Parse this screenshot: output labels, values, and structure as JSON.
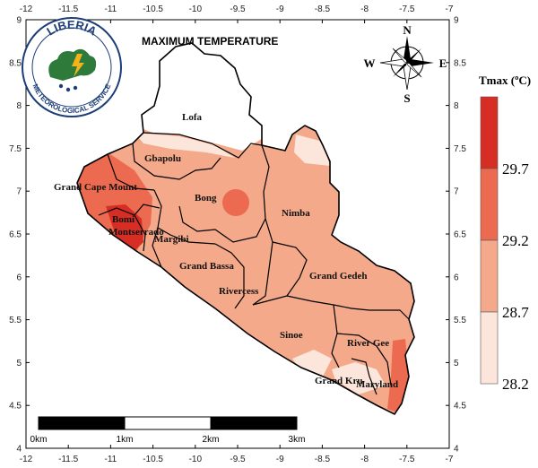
{
  "map": {
    "title": "MAXIMUM TEMPERATURE",
    "x_ticks": [
      "-12",
      "-11.5",
      "-11",
      "-10.5",
      "-10",
      "-9.5",
      "-9",
      "-8.5",
      "-8",
      "-7.5",
      "-7"
    ],
    "y_ticks": [
      "9",
      "8.5",
      "8",
      "7.5",
      "7",
      "6.5",
      "6",
      "5.5",
      "5",
      "4.5",
      "4"
    ],
    "counties": [
      {
        "name": "Lofa"
      },
      {
        "name": "Gbapolu"
      },
      {
        "name": "Grand Cape Mount"
      },
      {
        "name": "Bong"
      },
      {
        "name": "Nimba"
      },
      {
        "name": "Bomi"
      },
      {
        "name": "Montserrado"
      },
      {
        "name": "Margibi"
      },
      {
        "name": "Grand Bassa"
      },
      {
        "name": "Grand Gedeh"
      },
      {
        "name": "Rivercess"
      },
      {
        "name": "Sinoe"
      },
      {
        "name": "River Gee"
      },
      {
        "name": "Grand Kru"
      },
      {
        "name": "Maryland"
      }
    ]
  },
  "compass": {
    "n": "N",
    "s": "S",
    "e": "E",
    "w": "W"
  },
  "logo": {
    "line1": "LIBERIA",
    "line2": "METEOROLOGICAL SERVICE"
  },
  "legend": {
    "title": "Tmax (ºC)",
    "labels": [
      "29.7",
      "29.2",
      "28.7",
      "28.2"
    ],
    "colors": [
      "#d62e24",
      "#ec6a50",
      "#f4a98a",
      "#fce5da"
    ]
  },
  "scale_bar": {
    "labels": [
      "0km",
      "1km",
      "2km",
      "3km"
    ]
  }
}
